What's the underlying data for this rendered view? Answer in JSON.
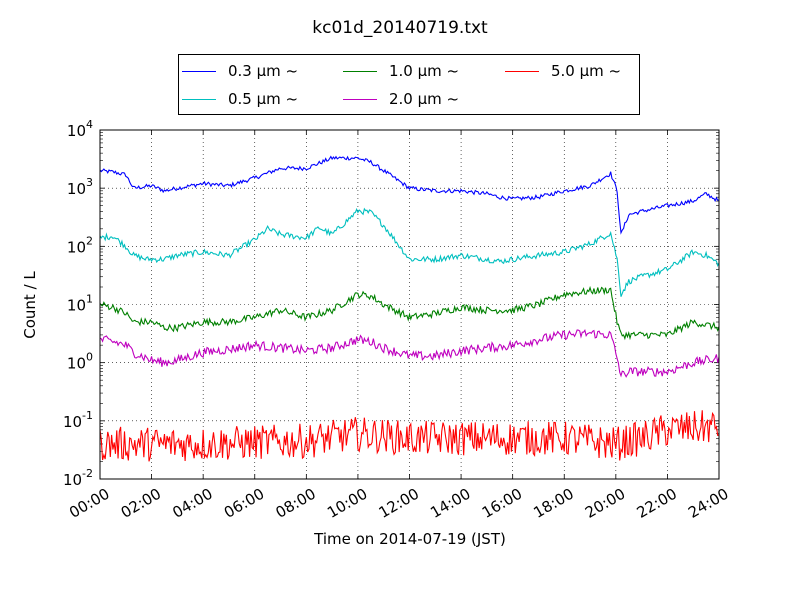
{
  "chart_data": {
    "type": "line",
    "title": "kc01d_20140719.txt",
    "xlabel": "Time on 2014-07-19 (JST)",
    "ylabel": "Count / L",
    "x_ticks": [
      "00:00",
      "02:00",
      "04:00",
      "06:00",
      "08:00",
      "10:00",
      "12:00",
      "14:00",
      "16:00",
      "18:00",
      "20:00",
      "22:00",
      "24:00"
    ],
    "x_range_hours": [
      0,
      24
    ],
    "y_scale": "log",
    "y_range": [
      0.01,
      10000
    ],
    "y_ticks": [
      {
        "base": "10",
        "exp": "-2",
        "value": 0.01
      },
      {
        "base": "10",
        "exp": "-1",
        "value": 0.1
      },
      {
        "base": "10",
        "exp": "0",
        "value": 1
      },
      {
        "base": "10",
        "exp": "1",
        "value": 10
      },
      {
        "base": "10",
        "exp": "2",
        "value": 100
      },
      {
        "base": "10",
        "exp": "3",
        "value": 1000
      },
      {
        "base": "10",
        "exp": "4",
        "value": 10000
      }
    ],
    "grid": true,
    "legend_position": "top-center",
    "series": [
      {
        "name": "0.3 μm ~",
        "color": "#0000ff",
        "x_hours": [
          0,
          0.5,
          1,
          1.3,
          2,
          2.5,
          3,
          4,
          5,
          6,
          7,
          8,
          9,
          10,
          10.5,
          11,
          12,
          13,
          14,
          15,
          15.5,
          16,
          17,
          18,
          19,
          19.8,
          20.05,
          20.2,
          20.5,
          21,
          22,
          23,
          23.5,
          24
        ],
        "values": [
          2000,
          1900,
          1700,
          1000,
          1100,
          900,
          1000,
          1200,
          1100,
          1500,
          2200,
          2200,
          3300,
          3300,
          2800,
          2000,
          1000,
          900,
          900,
          800,
          700,
          650,
          700,
          900,
          1100,
          1800,
          900,
          160,
          350,
          400,
          500,
          600,
          800,
          600
        ],
        "noise": 0.035
      },
      {
        "name": "0.5 μm ~",
        "color": "#00bfbf",
        "x_hours": [
          0,
          0.5,
          1,
          1.3,
          1.8,
          2.5,
          3,
          4,
          5,
          6,
          6.5,
          7,
          8,
          8.5,
          9,
          10,
          10.5,
          11,
          12,
          13,
          14,
          15,
          15.5,
          16,
          17,
          18,
          19,
          19.8,
          20.05,
          20.2,
          20.5,
          21,
          22,
          23,
          23.5,
          24
        ],
        "values": [
          140,
          150,
          100,
          70,
          60,
          60,
          70,
          80,
          70,
          130,
          200,
          160,
          140,
          210,
          160,
          410,
          380,
          230,
          60,
          60,
          70,
          60,
          55,
          60,
          70,
          80,
          110,
          170,
          60,
          15,
          25,
          30,
          40,
          80,
          70,
          50
        ],
        "noise": 0.05
      },
      {
        "name": "1.0 μm ~",
        "color": "#008000",
        "x_hours": [
          0,
          0.5,
          1,
          1.3,
          2,
          2.5,
          3,
          4,
          5,
          6,
          7,
          8,
          9,
          10,
          10.5,
          11,
          12,
          13,
          14,
          15,
          15.5,
          16,
          17,
          18,
          19,
          19.8,
          20.05,
          20.2,
          20.5,
          21,
          22,
          23,
          24
        ],
        "values": [
          10,
          9,
          7,
          5,
          5,
          4,
          4,
          5,
          5,
          6,
          8,
          6,
          8,
          15,
          14,
          10,
          6,
          7,
          9,
          8,
          8,
          8,
          10,
          15,
          17,
          18,
          5,
          3,
          3,
          3,
          3,
          5,
          4
        ],
        "noise": 0.06
      },
      {
        "name": "2.0 μm ~",
        "color": "#bf00bf",
        "x_hours": [
          0,
          0.5,
          1,
          1.3,
          2,
          2.5,
          3,
          4,
          5,
          6,
          7,
          8,
          9,
          10,
          10.5,
          11,
          12,
          13,
          14,
          15,
          16,
          17,
          18,
          19,
          19.8,
          20.05,
          20.2,
          20.5,
          21,
          22,
          23,
          24
        ],
        "values": [
          2.5,
          2.3,
          2,
          1.5,
          1.1,
          1,
          1.1,
          1.5,
          1.7,
          2,
          1.8,
          1.6,
          1.8,
          2.5,
          2.3,
          1.8,
          1.3,
          1.3,
          1.6,
          1.8,
          2,
          2.5,
          3,
          3.2,
          3,
          1.2,
          0.6,
          0.7,
          0.7,
          0.7,
          1,
          1.2
        ],
        "noise": 0.08
      },
      {
        "name": "5.0 μm ~",
        "color": "#ff0000",
        "x_hours": [
          0,
          4,
          8,
          10,
          12,
          16,
          18,
          20,
          21,
          22,
          24
        ],
        "values": [
          0.04,
          0.04,
          0.045,
          0.06,
          0.05,
          0.05,
          0.05,
          0.04,
          0.05,
          0.07,
          0.08
        ],
        "noise": 0.3
      }
    ]
  }
}
